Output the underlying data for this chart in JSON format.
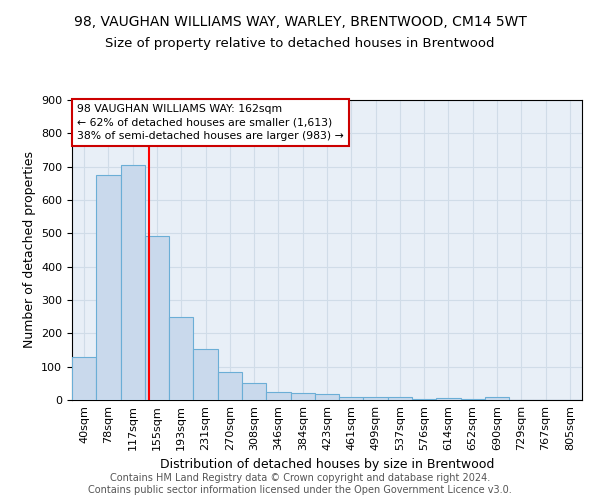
{
  "title1": "98, VAUGHAN WILLIAMS WAY, WARLEY, BRENTWOOD, CM14 5WT",
  "title2": "Size of property relative to detached houses in Brentwood",
  "xlabel": "Distribution of detached houses by size in Brentwood",
  "ylabel": "Number of detached properties",
  "footnote": "Contains HM Land Registry data © Crown copyright and database right 2024.\nContains public sector information licensed under the Open Government Licence v3.0.",
  "bin_labels": [
    "40sqm",
    "78sqm",
    "117sqm",
    "155sqm",
    "193sqm",
    "231sqm",
    "270sqm",
    "308sqm",
    "346sqm",
    "384sqm",
    "423sqm",
    "461sqm",
    "499sqm",
    "537sqm",
    "576sqm",
    "614sqm",
    "652sqm",
    "690sqm",
    "729sqm",
    "767sqm",
    "805sqm"
  ],
  "values": [
    130,
    675,
    705,
    493,
    250,
    152,
    85,
    52,
    25,
    22,
    17,
    10,
    10,
    8,
    3,
    5,
    4,
    10,
    0,
    0,
    0
  ],
  "bar_color": "#c9d9ec",
  "bar_edge_color": "#6baed6",
  "reference_line_color": "red",
  "annotation_text": "98 VAUGHAN WILLIAMS WAY: 162sqm\n← 62% of detached houses are smaller (1,613)\n38% of semi-detached houses are larger (983) →",
  "annotation_box_color": "white",
  "annotation_box_edge_color": "#cc0000",
  "ylim": [
    0,
    900
  ],
  "yticks": [
    0,
    100,
    200,
    300,
    400,
    500,
    600,
    700,
    800,
    900
  ],
  "grid_color": "#d0dce8",
  "bg_color": "#e8eff7",
  "title1_fontsize": 10,
  "title2_fontsize": 9.5,
  "xlabel_fontsize": 9,
  "ylabel_fontsize": 9,
  "tick_fontsize": 8,
  "footnote_fontsize": 7,
  "ref_line_x": 2.684
}
